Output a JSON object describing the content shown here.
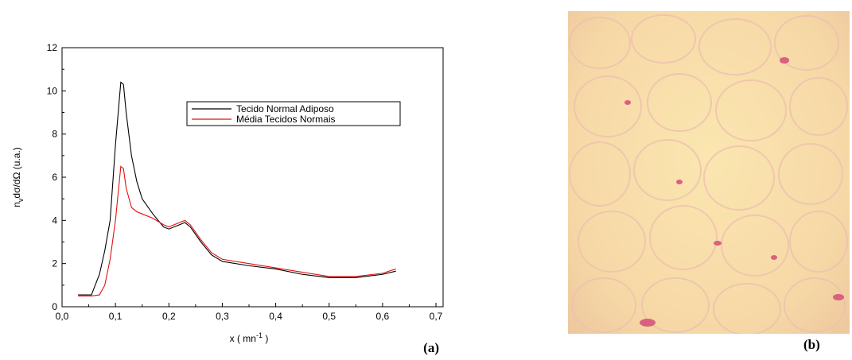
{
  "chart_data": {
    "type": "line",
    "y_label": {
      "main": "n",
      "sub": "v",
      "rest": "dσ/dΩ (u.a.)"
    },
    "x_label": {
      "main": "x ( mn",
      "sup": "-1",
      "rest": " )"
    },
    "panel_label": "(a)",
    "x": [
      0.03,
      0.055,
      0.07,
      0.08,
      0.09,
      0.1,
      0.11,
      0.115,
      0.12,
      0.13,
      0.14,
      0.15,
      0.17,
      0.19,
      0.2,
      0.22,
      0.23,
      0.24,
      0.26,
      0.28,
      0.3,
      0.35,
      0.4,
      0.45,
      0.5,
      0.55,
      0.6,
      0.625
    ],
    "series": [
      {
        "name": "Tecido Normal Adiposo",
        "color": "#000000",
        "values": [
          0.55,
          0.55,
          1.5,
          2.6,
          4.0,
          7.5,
          10.4,
          10.3,
          9.0,
          7.0,
          5.8,
          5.0,
          4.3,
          3.7,
          3.6,
          3.8,
          3.9,
          3.7,
          3.0,
          2.4,
          2.1,
          1.9,
          1.75,
          1.5,
          1.35,
          1.35,
          1.5,
          1.65
        ]
      },
      {
        "name": "Média Tecidos Normais",
        "color": "#e01010",
        "values": [
          0.5,
          0.5,
          0.55,
          1.0,
          2.2,
          4.0,
          6.5,
          6.4,
          5.5,
          4.6,
          4.4,
          4.3,
          4.1,
          3.8,
          3.7,
          3.9,
          4.0,
          3.8,
          3.1,
          2.5,
          2.2,
          2.0,
          1.8,
          1.6,
          1.4,
          1.4,
          1.55,
          1.75
        ]
      }
    ],
    "xlim": [
      0,
      0.7
    ],
    "xticks": [
      {
        "value": 0,
        "label": "0,0"
      },
      {
        "value": 0.1,
        "label": "0,1"
      },
      {
        "value": 0.2,
        "label": "0,2"
      },
      {
        "value": 0.3,
        "label": "0,3"
      },
      {
        "value": 0.4,
        "label": "0,4"
      },
      {
        "value": 0.5,
        "label": "0,5"
      },
      {
        "value": 0.6,
        "label": "0,6"
      },
      {
        "value": 0.7,
        "label": "0,7"
      }
    ],
    "ylim": [
      0,
      12
    ],
    "yticks": [
      0,
      2,
      4,
      6,
      8,
      10,
      12
    ],
    "legend": "upper right"
  },
  "image_label": "(b)"
}
